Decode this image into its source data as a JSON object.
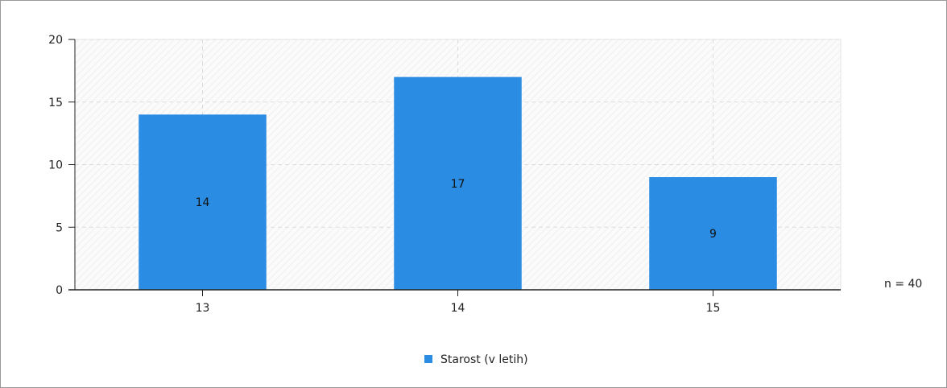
{
  "chart_data": {
    "type": "bar",
    "categories": [
      "13",
      "14",
      "15"
    ],
    "series": [
      {
        "name": "Starost (v letih)",
        "values": [
          14,
          17,
          9
        ]
      }
    ],
    "ylim": [
      0,
      20
    ],
    "yticks": [
      0,
      5,
      10,
      15,
      20
    ],
    "grid": true,
    "legend_position": "bottom-center",
    "annotation": "n = 40",
    "colors": {
      "bar": "#2a8de3",
      "grid": "#dddddd",
      "axis": "#222222"
    }
  }
}
